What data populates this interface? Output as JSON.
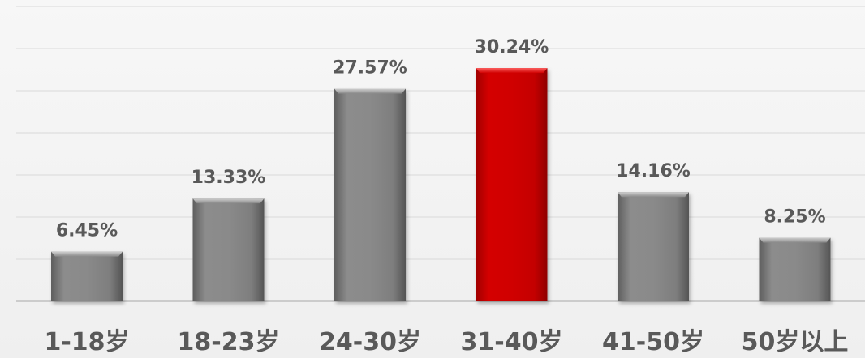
{
  "chart_data": {
    "type": "bar",
    "title": "",
    "xlabel": "",
    "ylabel": "",
    "categories": [
      "1-18岁",
      "18-23岁",
      "24-30岁",
      "31-40岁",
      "41-50岁",
      "50岁以上"
    ],
    "values": [
      6.45,
      13.33,
      27.57,
      30.24,
      14.16,
      8.25
    ],
    "value_labels": [
      "6.45%",
      "13.33%",
      "27.57%",
      "30.24%",
      "14.16%",
      "8.25%"
    ],
    "unit": "%",
    "ylim": [
      0,
      35
    ],
    "grid": true,
    "legend": "none",
    "highlight_index": 3,
    "colors": {
      "bar": "#808080",
      "highlight": "#cc0000",
      "grid": "#d9d9d9",
      "text": "#595959"
    }
  }
}
